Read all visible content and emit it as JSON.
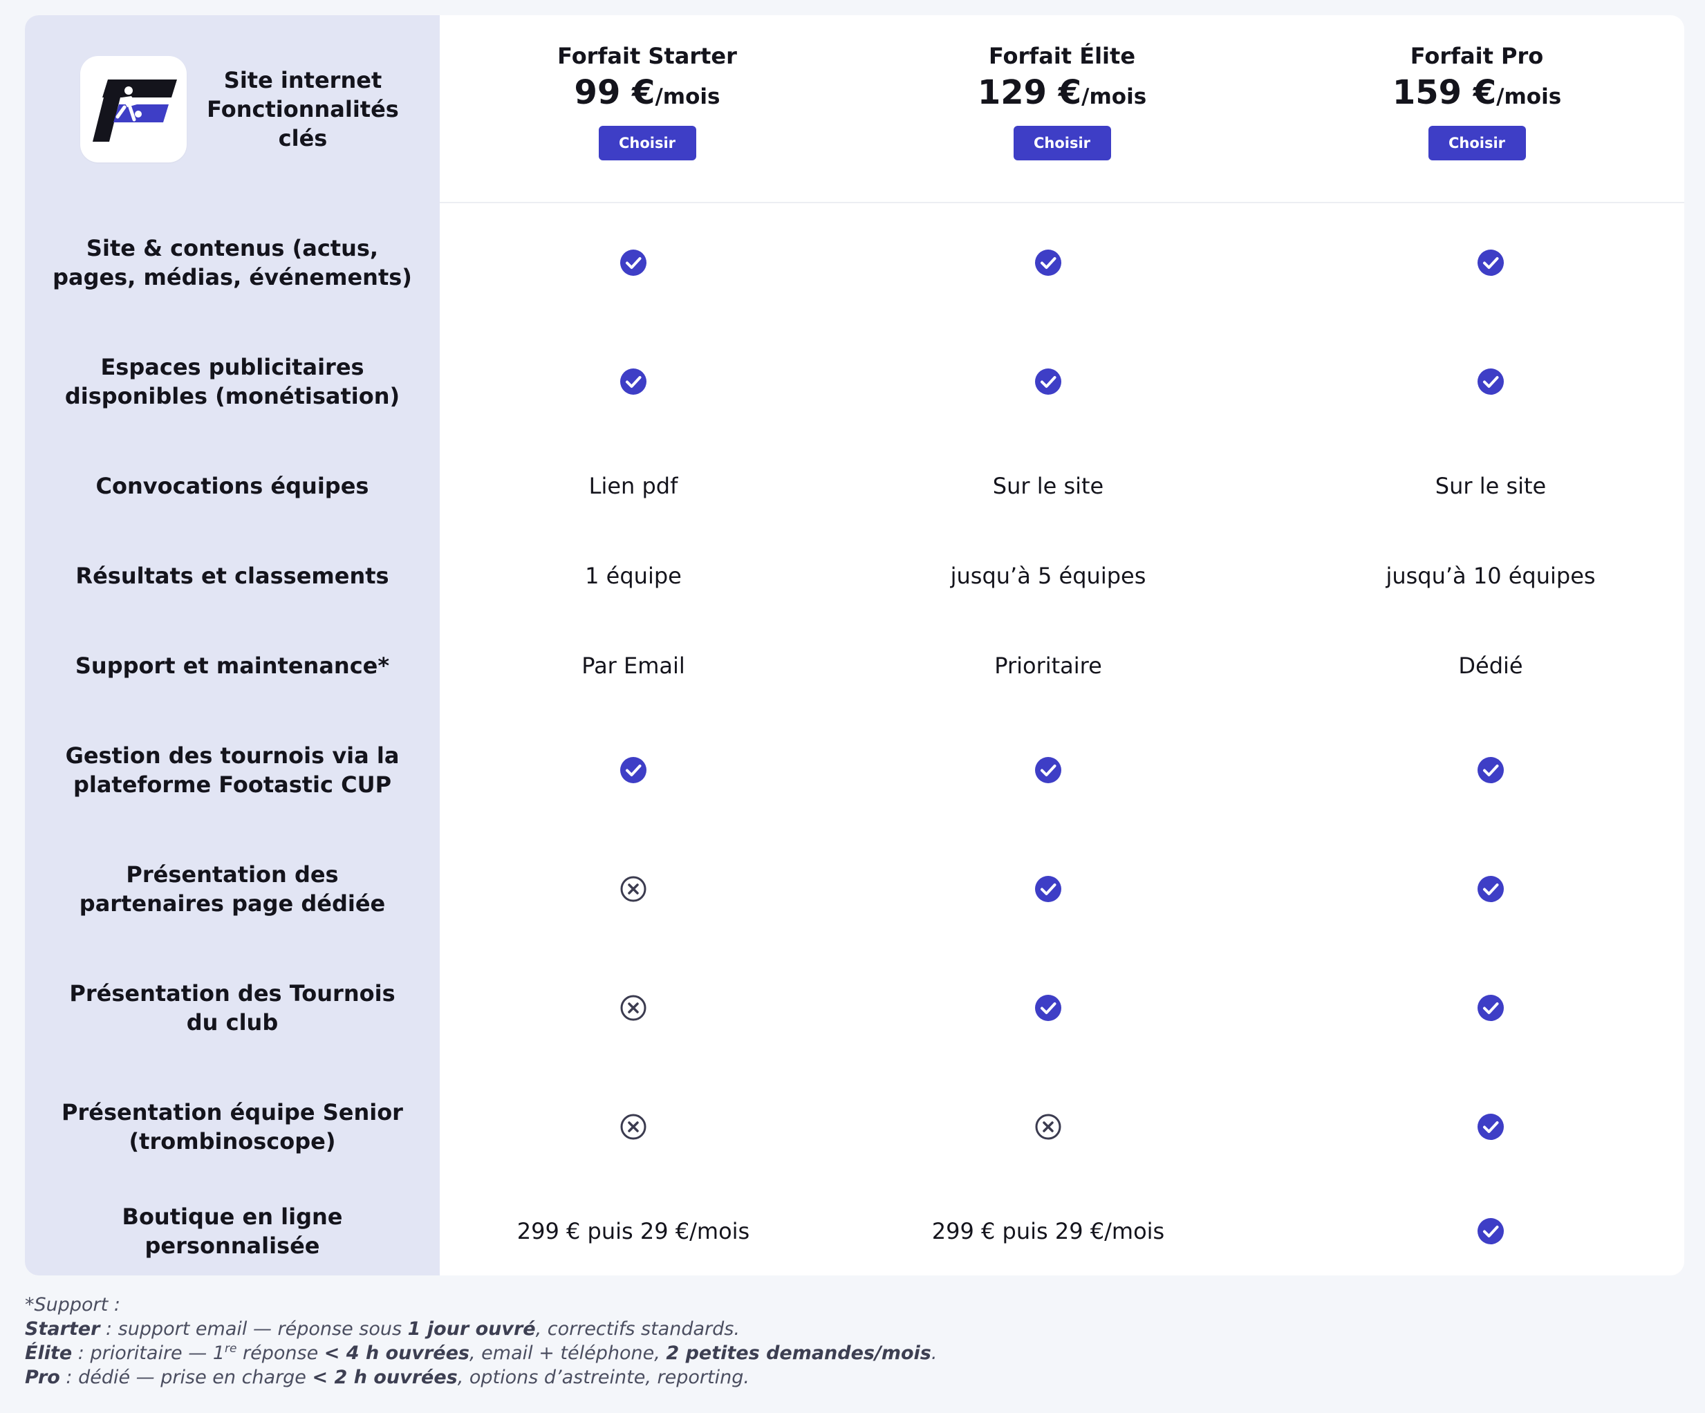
{
  "header": {
    "title_lines": [
      "Site internet",
      "Fonctionnalités",
      "clés"
    ],
    "logo_icon": "footastic-logo-icon"
  },
  "plans": [
    {
      "name": "Forfait Starter",
      "price": "99 €",
      "unit": "/mois",
      "button": "Choisir"
    },
    {
      "name": "Forfait Élite",
      "price": "129 €",
      "unit": "/mois",
      "button": "Choisir"
    },
    {
      "name": "Forfait Pro",
      "price": "159 €",
      "unit": "/mois",
      "button": "Choisir"
    }
  ],
  "rows": [
    {
      "label": "Site & contenus (actus, pages, médias, événements)",
      "values": [
        "check",
        "check",
        "check"
      ]
    },
    {
      "label": "Espaces publicitaires disponibles (monétisation)",
      "values": [
        "check",
        "check",
        "check"
      ]
    },
    {
      "label": "Convocations équipes",
      "values": [
        "Lien pdf",
        "Sur le site",
        "Sur le site"
      ]
    },
    {
      "label": "Résultats et classements",
      "values": [
        "1 équipe",
        "jusqu’à 5 équipes",
        "jusqu’à 10 équipes"
      ]
    },
    {
      "label": "Support et maintenance*",
      "values": [
        "Par Email",
        "Prioritaire",
        "Dédié"
      ]
    },
    {
      "label": "Gestion des tournois via la plateforme Footastic CUP",
      "values": [
        "check",
        "check",
        "check"
      ]
    },
    {
      "label": "Présentation des partenaires page dédiée",
      "values": [
        "cross",
        "check",
        "check"
      ]
    },
    {
      "label": "Présentation des Tournois du club",
      "values": [
        "cross",
        "check",
        "check"
      ]
    },
    {
      "label": "Présentation équipe Senior (trombinoscope)",
      "values": [
        "cross",
        "cross",
        "check"
      ]
    },
    {
      "label": "Boutique en ligne personnalisée",
      "values": [
        "299 € puis 29 €/mois",
        "299 € puis 29 €/mois",
        "check"
      ]
    }
  ],
  "icons": {
    "check": "check-circle-icon",
    "cross": "x-circle-icon"
  },
  "colors": {
    "accent": "#3e3ec6",
    "sidebar": "#e2e5f4",
    "cross": "#3b3b4f",
    "page": "#f4f6fa"
  },
  "footnote": {
    "title": "*Support :",
    "lines": [
      [
        {
          "t": "Starter",
          "b": true
        },
        {
          "t": " : support email — réponse sous "
        },
        {
          "t": "1 jour ouvré",
          "b": true
        },
        {
          "t": ", correctifs standards."
        }
      ],
      [
        {
          "t": "Élite",
          "b": true
        },
        {
          "t": " : prioritaire — 1"
        },
        {
          "t": "re",
          "sup": true
        },
        {
          "t": " réponse "
        },
        {
          "t": "< 4 h ouvrées",
          "b": true
        },
        {
          "t": ", email + téléphone, "
        },
        {
          "t": "2 petites demandes/mois",
          "b": true
        },
        {
          "t": "."
        }
      ],
      [
        {
          "t": "Pro",
          "b": true
        },
        {
          "t": " : dédié — prise en charge "
        },
        {
          "t": "< 2 h ouvrées",
          "b": true
        },
        {
          "t": ", options d’astreinte, reporting."
        }
      ]
    ]
  }
}
